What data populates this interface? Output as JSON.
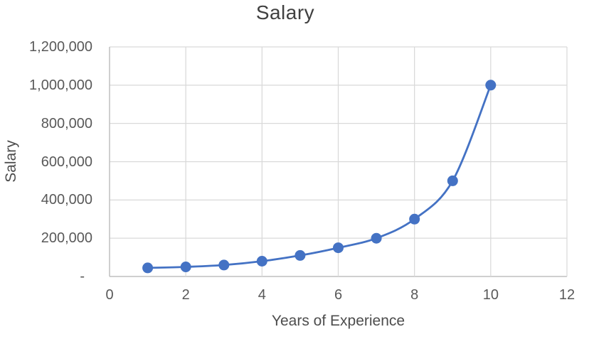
{
  "title": "Salary",
  "colors": {
    "series": "#4472C4",
    "gridline": "#D9D9D9",
    "axis_line": "#BFBFBF",
    "title_text": "#404040",
    "tick_text": "#595959"
  },
  "chart_data": {
    "type": "line",
    "title": "Salary",
    "xlabel": "Years of Experience",
    "ylabel": "Salary",
    "x": [
      1,
      2,
      3,
      4,
      5,
      6,
      7,
      8,
      9,
      10
    ],
    "y": [
      45000,
      50000,
      60000,
      80000,
      110000,
      150000,
      200000,
      300000,
      500000,
      1000000
    ],
    "xlim": [
      0,
      12
    ],
    "ylim": [
      0,
      1200000
    ],
    "x_ticks": [
      0,
      2,
      4,
      6,
      8,
      10,
      12
    ],
    "x_tick_labels": [
      "0",
      "2",
      "4",
      "6",
      "8",
      "10",
      "12"
    ],
    "y_ticks": [
      0,
      200000,
      400000,
      600000,
      800000,
      1000000,
      1200000
    ],
    "y_tick_labels": [
      "-",
      "200,000",
      "400,000",
      "600,000",
      "800,000",
      "1,000,000",
      "1,200,000"
    ],
    "grid": true,
    "smooth": true,
    "marker": "circle",
    "legend": "none"
  }
}
